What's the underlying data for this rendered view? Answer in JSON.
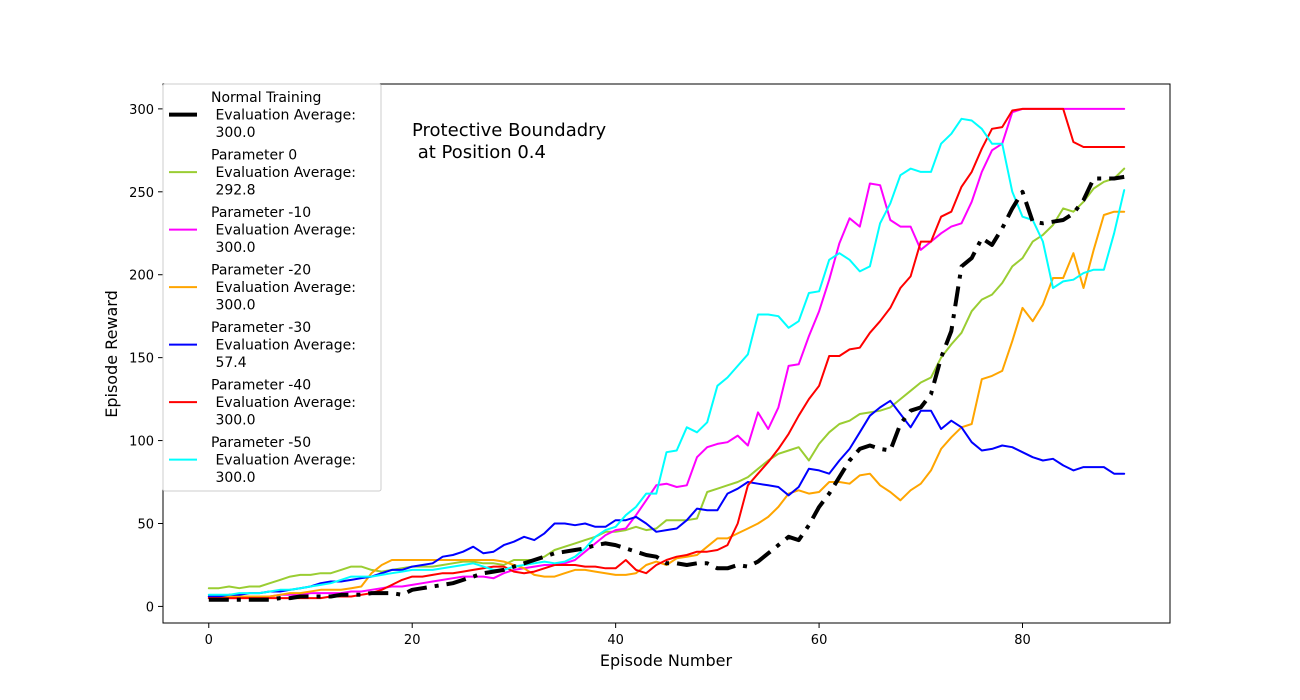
{
  "chart_data": {
    "type": "line",
    "xlabel": "Episode Number",
    "ylabel": "Episode Reward",
    "xlim": [
      -4.5,
      94.5
    ],
    "ylim": [
      -10,
      315
    ],
    "xticks": [
      0,
      20,
      40,
      60,
      80
    ],
    "yticks": [
      0,
      50,
      100,
      150,
      200,
      250,
      300
    ],
    "annotation": [
      "Protective Boundadry",
      " at Position 0.4"
    ],
    "legend_position": "upper-left",
    "grid": false,
    "x": [
      0,
      1,
      2,
      3,
      4,
      5,
      6,
      7,
      8,
      9,
      10,
      11,
      12,
      13,
      14,
      15,
      16,
      17,
      18,
      19,
      20,
      21,
      22,
      23,
      24,
      25,
      26,
      27,
      28,
      29,
      30,
      31,
      32,
      33,
      34,
      35,
      36,
      37,
      38,
      39,
      40,
      41,
      42,
      43,
      44,
      45,
      46,
      47,
      48,
      49,
      50,
      51,
      52,
      53,
      54,
      55,
      56,
      57,
      58,
      59,
      60,
      61,
      62,
      63,
      64,
      65,
      66,
      67,
      68,
      69,
      70,
      71,
      72,
      73,
      74,
      75,
      76,
      77,
      78,
      79,
      80,
      81,
      82,
      83,
      84,
      85,
      86,
      87,
      88,
      89,
      90
    ],
    "series": [
      {
        "name": "Normal Training\n Evaluation Average:\n 300.0",
        "color": "#000000",
        "style": "dashdot",
        "width": 4,
        "values": [
          4,
          4,
          4,
          4,
          4,
          4,
          4,
          5,
          5,
          6,
          6,
          6,
          6,
          7,
          7,
          7,
          8,
          8,
          8,
          7,
          10,
          11,
          12,
          13,
          14,
          16,
          18,
          20,
          21,
          22,
          24,
          26,
          28,
          30,
          32,
          33,
          34,
          35,
          37,
          38,
          37,
          35,
          33,
          31,
          30,
          26,
          26,
          25,
          26,
          26,
          23,
          23,
          25,
          24,
          27,
          32,
          37,
          42,
          40,
          49,
          60,
          68,
          78,
          88,
          95,
          97,
          95,
          94,
          110,
          118,
          120,
          128,
          150,
          166,
          205,
          210,
          222,
          218,
          228,
          240,
          250,
          232,
          231,
          232,
          233,
          237,
          245,
          258,
          258,
          258,
          259
        ]
      },
      {
        "name": "Parameter 0\n Evaluation Average:\n 292.8",
        "color": "#9acd32",
        "style": "solid",
        "width": 2,
        "values": [
          11,
          11,
          12,
          11,
          12,
          12,
          14,
          16,
          18,
          19,
          19,
          20,
          20,
          22,
          24,
          24,
          22,
          21,
          22,
          23,
          24,
          24,
          24,
          25,
          26,
          27,
          27,
          26,
          26,
          25,
          28,
          28,
          28,
          30,
          34,
          36,
          38,
          40,
          42,
          45,
          45,
          46,
          48,
          46,
          47,
          52,
          52,
          52,
          53,
          69,
          71,
          73,
          75,
          78,
          83,
          88,
          92,
          94,
          96,
          88,
          98,
          105,
          110,
          112,
          116,
          117,
          118,
          120,
          125,
          130,
          135,
          138,
          150,
          158,
          165,
          178,
          185,
          188,
          195,
          205,
          210,
          220,
          224,
          230,
          240,
          238,
          244,
          252,
          256,
          258,
          264
        ]
      },
      {
        "name": "Parameter -10\n Evaluation Average:\n 300.0",
        "color": "#ff00ff",
        "style": "solid",
        "width": 2,
        "values": [
          5,
          5,
          5,
          5,
          6,
          6,
          6,
          7,
          7,
          7,
          8,
          8,
          8,
          8,
          9,
          9,
          10,
          11,
          12,
          12,
          13,
          14,
          15,
          16,
          17,
          18,
          18,
          18,
          17,
          20,
          22,
          23,
          24,
          25,
          25,
          26,
          28,
          33,
          38,
          43,
          46,
          47,
          55,
          64,
          73,
          74,
          72,
          73,
          90,
          96,
          98,
          99,
          103,
          97,
          117,
          107,
          120,
          145,
          146,
          163,
          178,
          197,
          219,
          234,
          229,
          255,
          254,
          233,
          229,
          229,
          215,
          220,
          225,
          229,
          231,
          244,
          262,
          275,
          279,
          298,
          300,
          300,
          300,
          300,
          300,
          300,
          300,
          300,
          300,
          300,
          300
        ]
      },
      {
        "name": "Parameter -20\n Evaluation Average:\n 300.0",
        "color": "#ffa500",
        "style": "solid",
        "width": 2,
        "values": [
          6,
          6,
          6,
          6,
          6,
          6,
          6,
          7,
          8,
          8,
          9,
          10,
          10,
          10,
          11,
          12,
          20,
          25,
          28,
          28,
          28,
          28,
          28,
          28,
          28,
          28,
          28,
          28,
          28,
          27,
          25,
          23,
          19,
          18,
          18,
          20,
          22,
          22,
          21,
          20,
          19,
          19,
          20,
          25,
          27,
          25,
          29,
          30,
          31,
          36,
          41,
          41,
          44,
          47,
          50,
          54,
          60,
          68,
          70,
          68,
          69,
          75,
          75,
          74,
          79,
          80,
          73,
          69,
          64,
          70,
          74,
          82,
          95,
          102,
          108,
          110,
          137,
          139,
          142,
          160,
          180,
          172,
          182,
          198,
          198,
          213,
          192,
          215,
          236,
          238,
          238
        ]
      },
      {
        "name": "Parameter -30\n Evaluation Average:\n 57.4",
        "color": "#0000ff",
        "style": "solid",
        "width": 2,
        "values": [
          6,
          6,
          7,
          7,
          8,
          8,
          9,
          9,
          10,
          11,
          12,
          14,
          15,
          15,
          16,
          17,
          18,
          20,
          22,
          22,
          24,
          25,
          26,
          30,
          31,
          33,
          36,
          32,
          33,
          37,
          39,
          42,
          40,
          44,
          50,
          50,
          49,
          50,
          48,
          48,
          52,
          52,
          54,
          50,
          45,
          46,
          47,
          52,
          59,
          58,
          58,
          68,
          71,
          75,
          74,
          73,
          72,
          67,
          72,
          83,
          82,
          80,
          88,
          95,
          105,
          115,
          120,
          124,
          116,
          108,
          118,
          118,
          107,
          112,
          108,
          99,
          94,
          95,
          97,
          96,
          93,
          90,
          88,
          89,
          85,
          82,
          84,
          84,
          84,
          80,
          80
        ]
      },
      {
        "name": "Parameter -40\n Evaluation Average:\n 300.0",
        "color": "#ff0000",
        "style": "solid",
        "width": 2,
        "values": [
          5,
          5,
          5,
          5,
          5,
          5,
          5,
          5,
          5,
          5,
          5,
          5,
          6,
          6,
          6,
          7,
          8,
          10,
          13,
          16,
          18,
          18,
          19,
          20,
          20,
          21,
          22,
          23,
          24,
          24,
          21,
          20,
          21,
          23,
          25,
          25,
          25,
          24,
          24,
          23,
          23,
          28,
          22,
          20,
          25,
          28,
          30,
          31,
          33,
          33,
          34,
          37,
          50,
          73,
          80,
          87,
          95,
          104,
          115,
          125,
          133,
          151,
          151,
          155,
          156,
          165,
          172,
          180,
          192,
          199,
          220,
          220,
          235,
          238,
          253,
          262,
          276,
          288,
          289,
          299,
          300,
          300,
          300,
          300,
          300,
          280,
          277,
          277,
          277,
          277,
          277
        ]
      },
      {
        "name": "Parameter -50\n Evaluation Average:\n 300.0",
        "color": "#00ffff",
        "style": "solid",
        "width": 2,
        "values": [
          7,
          7,
          7,
          8,
          8,
          8,
          9,
          10,
          10,
          11,
          12,
          13,
          14,
          16,
          18,
          18,
          18,
          19,
          20,
          21,
          22,
          22,
          22,
          23,
          24,
          25,
          26,
          24,
          22,
          22,
          24,
          25,
          26,
          27,
          26,
          27,
          30,
          35,
          42,
          46,
          48,
          55,
          60,
          68,
          68,
          93,
          94,
          108,
          105,
          111,
          133,
          138,
          145,
          152,
          176,
          176,
          175,
          168,
          172,
          189,
          190,
          209,
          213,
          209,
          202,
          205,
          231,
          243,
          260,
          264,
          262,
          262,
          279,
          285,
          294,
          293,
          288,
          279,
          279,
          250,
          235,
          233,
          220,
          192,
          196,
          197,
          201,
          203,
          203,
          225,
          251
        ]
      }
    ]
  }
}
